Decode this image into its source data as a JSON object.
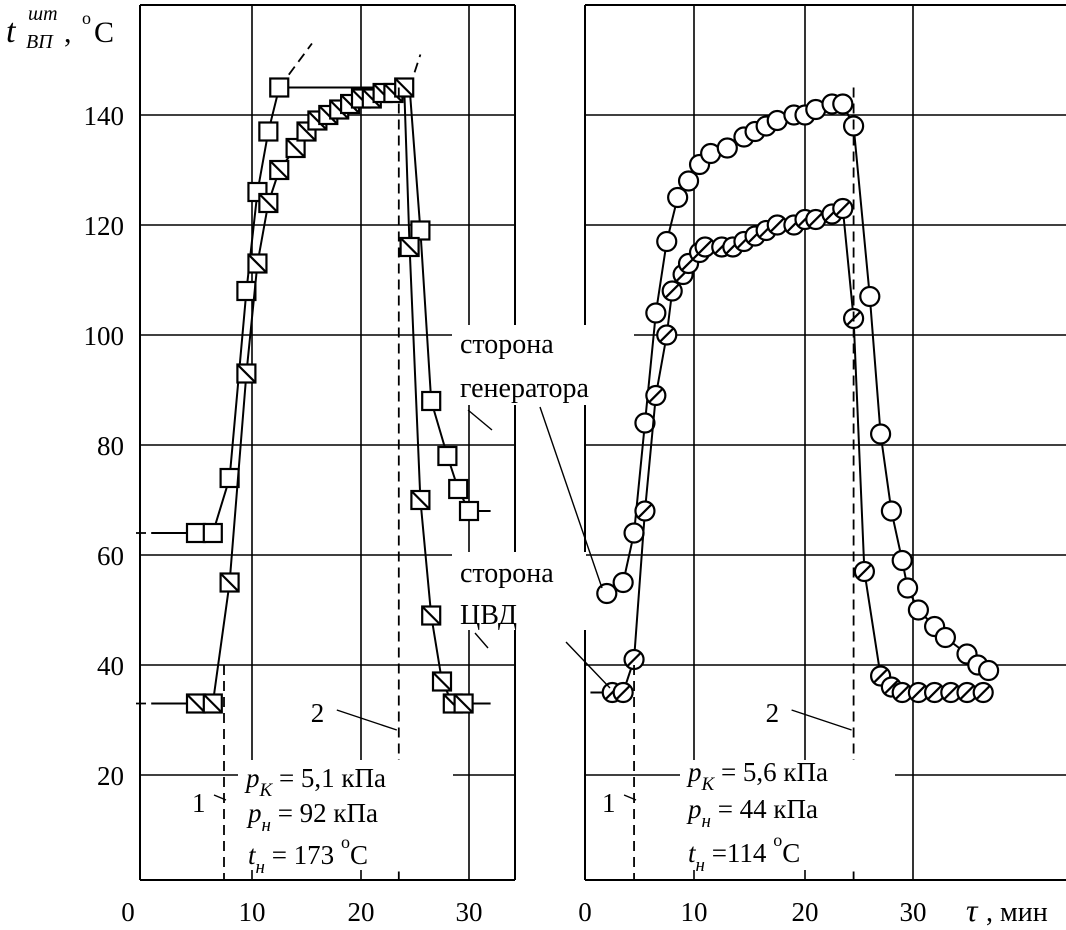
{
  "y_axis_label": {
    "symbol": "t",
    "superscript": "шт",
    "subscript": "ВП",
    "separator": ",",
    "unit_sup": "o",
    "unit": "C"
  },
  "x_axis_label": {
    "symbol": "τ",
    "unit": ", мин"
  },
  "chart_data": [
    {
      "type": "scatter",
      "xlim": [
        0,
        33
      ],
      "ylim": [
        0,
        155
      ],
      "x_ticks": [
        0,
        10,
        20,
        30
      ],
      "y_ticks": [
        20,
        40,
        60,
        80,
        100,
        120,
        140
      ],
      "y_tick_labels": [
        "20",
        "40",
        "60",
        "80",
        "100",
        "120",
        "140"
      ],
      "grid": true,
      "series": [
        {
          "marker": "open-square",
          "points": [
            [
              5,
              64
            ],
            [
              6.5,
              64
            ],
            [
              8,
              74
            ],
            [
              9.5,
              108
            ],
            [
              10.5,
              126
            ],
            [
              11.5,
              137
            ],
            [
              12.5,
              145
            ],
            [
              25.5,
              119
            ],
            [
              26.5,
              88
            ],
            [
              28,
              78
            ],
            [
              29,
              72
            ],
            [
              30,
              68
            ]
          ],
          "line_points": [
            [
              1,
              64
            ],
            [
              6.5,
              64
            ],
            [
              8,
              74
            ],
            [
              9.5,
              108
            ],
            [
              10.5,
              126
            ],
            [
              11.5,
              137
            ],
            [
              12.5,
              145
            ],
            [
              24.5,
              145
            ],
            [
              25.5,
              119
            ],
            [
              26.5,
              88
            ],
            [
              28,
              78
            ],
            [
              29,
              72
            ],
            [
              30,
              68
            ],
            [
              32,
              68
            ]
          ],
          "dashed_extension": [
            [
              12.5,
              145
            ],
            [
              15.5,
              153
            ]
          ],
          "dashed_top": [
            [
              24.5,
              145
            ],
            [
              25.5,
              151
            ]
          ]
        },
        {
          "marker": "hatched-square",
          "points": [
            [
              5,
              33
            ],
            [
              6.5,
              33
            ],
            [
              8,
              55
            ],
            [
              9.5,
              93
            ],
            [
              10.5,
              113
            ],
            [
              11.5,
              124
            ],
            [
              12.5,
              130
            ],
            [
              14,
              134
            ],
            [
              15,
              137
            ],
            [
              16,
              139
            ],
            [
              17,
              140
            ],
            [
              18,
              141
            ],
            [
              19,
              142
            ],
            [
              20,
              143
            ],
            [
              21,
              143
            ],
            [
              22,
              144
            ],
            [
              23,
              144
            ],
            [
              24,
              145
            ],
            [
              24.5,
              116
            ],
            [
              25.5,
              70
            ],
            [
              26.5,
              49
            ],
            [
              27.5,
              37
            ],
            [
              28.5,
              33
            ],
            [
              29.5,
              33
            ]
          ],
          "line_points": [
            [
              1,
              33
            ],
            [
              6.5,
              33
            ],
            [
              8,
              55
            ],
            [
              9.5,
              93
            ],
            [
              10.5,
              113
            ],
            [
              11.5,
              124
            ],
            [
              12.5,
              130
            ],
            [
              14,
              134
            ],
            [
              15,
              137
            ],
            [
              16,
              139
            ],
            [
              17,
              140
            ],
            [
              18,
              141
            ],
            [
              19,
              142
            ],
            [
              20,
              143
            ],
            [
              21,
              143
            ],
            [
              22,
              144
            ],
            [
              23,
              144
            ],
            [
              24,
              145
            ],
            [
              24.5,
              116
            ],
            [
              25.5,
              70
            ],
            [
              26.5,
              49
            ],
            [
              27.5,
              37
            ],
            [
              28.5,
              33
            ],
            [
              29.5,
              33
            ],
            [
              32,
              33
            ]
          ]
        }
      ],
      "markers": [
        {
          "label": "1",
          "x": 7.5
        },
        {
          "label": "2",
          "x": 23.5
        }
      ],
      "params": [
        {
          "symbol": "p",
          "sub": "K",
          "text": " = 5,1 кПа"
        },
        {
          "symbol": "p",
          "sub": "н",
          "text": " = 92  кПа"
        },
        {
          "symbol": "t",
          "sub": "н",
          "text": " = 173 ",
          "sup": "o",
          "unit": "C"
        }
      ]
    },
    {
      "type": "scatter",
      "xlim": [
        0,
        39
      ],
      "ylim": [
        0,
        155
      ],
      "x_ticks": [
        0,
        10,
        20,
        30
      ],
      "y_ticks": [
        20,
        40,
        60,
        80,
        100,
        120,
        140
      ],
      "grid": true,
      "series": [
        {
          "name": "сторона генератора",
          "marker": "open-circle",
          "points": [
            [
              2,
              53
            ],
            [
              3.5,
              55
            ],
            [
              4.5,
              64
            ],
            [
              5.5,
              84
            ],
            [
              6.5,
              104
            ],
            [
              7.5,
              117
            ],
            [
              8.5,
              125
            ],
            [
              9.5,
              128
            ],
            [
              10.5,
              131
            ],
            [
              11.5,
              133
            ],
            [
              13,
              134
            ],
            [
              14.5,
              136
            ],
            [
              15.5,
              137
            ],
            [
              16.5,
              138
            ],
            [
              17.5,
              139
            ],
            [
              19,
              140
            ],
            [
              20,
              140
            ],
            [
              21,
              141
            ],
            [
              22.5,
              142
            ],
            [
              23.5,
              142
            ],
            [
              24.5,
              138
            ],
            [
              26,
              107
            ],
            [
              27,
              82
            ],
            [
              28,
              68
            ],
            [
              29,
              59
            ],
            [
              29.5,
              54
            ],
            [
              30.5,
              50
            ],
            [
              32,
              47
            ],
            [
              33,
              45
            ],
            [
              35,
              42
            ],
            [
              36,
              40
            ],
            [
              37,
              39
            ]
          ],
          "line_points": [
            [
              2,
              53
            ],
            [
              3.5,
              55
            ],
            [
              4.5,
              64
            ],
            [
              5.5,
              84
            ],
            [
              6.5,
              104
            ],
            [
              7.5,
              117
            ],
            [
              8.5,
              125
            ],
            [
              9.5,
              128
            ],
            [
              10.5,
              131
            ],
            [
              11.5,
              133
            ],
            [
              13,
              134
            ],
            [
              14.5,
              136
            ],
            [
              15.5,
              137
            ],
            [
              16.5,
              138
            ],
            [
              17.5,
              139
            ],
            [
              19,
              140
            ],
            [
              20,
              140
            ],
            [
              21,
              141
            ],
            [
              22.5,
              142
            ],
            [
              23.5,
              142
            ],
            [
              24.5,
              138
            ],
            [
              26,
              107
            ],
            [
              27,
              82
            ],
            [
              28,
              68
            ],
            [
              29,
              59
            ],
            [
              29.5,
              54
            ],
            [
              30.5,
              50
            ],
            [
              32,
              47
            ],
            [
              33,
              45
            ],
            [
              35,
              42
            ],
            [
              36,
              40
            ],
            [
              37,
              39
            ]
          ]
        },
        {
          "name": "сторона ЦВД",
          "marker": "hatched-circle",
          "points": [
            [
              2.5,
              35
            ],
            [
              3.5,
              35
            ],
            [
              4.5,
              41
            ],
            [
              5.5,
              68
            ],
            [
              6.5,
              89
            ],
            [
              7.5,
              100
            ],
            [
              8,
              108
            ],
            [
              9,
              111
            ],
            [
              9.5,
              113
            ],
            [
              10.5,
              115
            ],
            [
              11,
              116
            ],
            [
              12.5,
              116
            ],
            [
              13.5,
              116
            ],
            [
              14.5,
              117
            ],
            [
              15.5,
              118
            ],
            [
              16.5,
              119
            ],
            [
              17.5,
              120
            ],
            [
              19,
              120
            ],
            [
              20,
              121
            ],
            [
              21,
              121
            ],
            [
              22.5,
              122
            ],
            [
              23.5,
              123
            ],
            [
              24.5,
              103
            ],
            [
              25.5,
              57
            ],
            [
              27,
              38
            ],
            [
              28,
              36
            ],
            [
              29,
              35
            ],
            [
              30.5,
              35
            ],
            [
              32,
              35
            ],
            [
              33.5,
              35
            ],
            [
              35,
              35
            ],
            [
              36.5,
              35
            ]
          ],
          "line_points": [
            [
              0.5,
              35
            ],
            [
              2.5,
              35
            ],
            [
              3.5,
              35
            ],
            [
              4.5,
              41
            ],
            [
              5.5,
              68
            ],
            [
              6.5,
              89
            ],
            [
              7.5,
              100
            ],
            [
              8,
              108
            ],
            [
              9,
              111
            ],
            [
              9.5,
              113
            ],
            [
              10.5,
              115
            ],
            [
              11,
              116
            ],
            [
              12.5,
              116
            ],
            [
              13.5,
              116
            ],
            [
              14.5,
              117
            ],
            [
              15.5,
              118
            ],
            [
              16.5,
              119
            ],
            [
              17.5,
              120
            ],
            [
              19,
              120
            ],
            [
              20,
              121
            ],
            [
              21,
              121
            ],
            [
              22.5,
              122
            ],
            [
              23.5,
              123
            ],
            [
              24.5,
              103
            ],
            [
              25.5,
              57
            ],
            [
              27,
              38
            ],
            [
              28,
              36
            ],
            [
              29,
              35
            ],
            [
              30.5,
              35
            ],
            [
              32,
              35
            ],
            [
              33.5,
              35
            ],
            [
              35,
              35
            ],
            [
              36.5,
              35
            ]
          ]
        }
      ],
      "markers": [
        {
          "label": "1",
          "x": 4.5
        },
        {
          "label": "2",
          "x": 24.5
        }
      ],
      "params": [
        {
          "symbol": "p",
          "sub": "K",
          "text": " = 5,6  кПа"
        },
        {
          "symbol": "p",
          "sub": "н",
          "text": " = 44  кПа"
        },
        {
          "symbol": "t",
          "sub": "н",
          "text": " =114 ",
          "sup": "o",
          "unit": "C"
        }
      ]
    }
  ],
  "annotations": {
    "generator_side": {
      "line1": "сторона",
      "line2": "генератора"
    },
    "hpc_side": {
      "line1": "сторона",
      "line2": "ЦВД"
    }
  }
}
